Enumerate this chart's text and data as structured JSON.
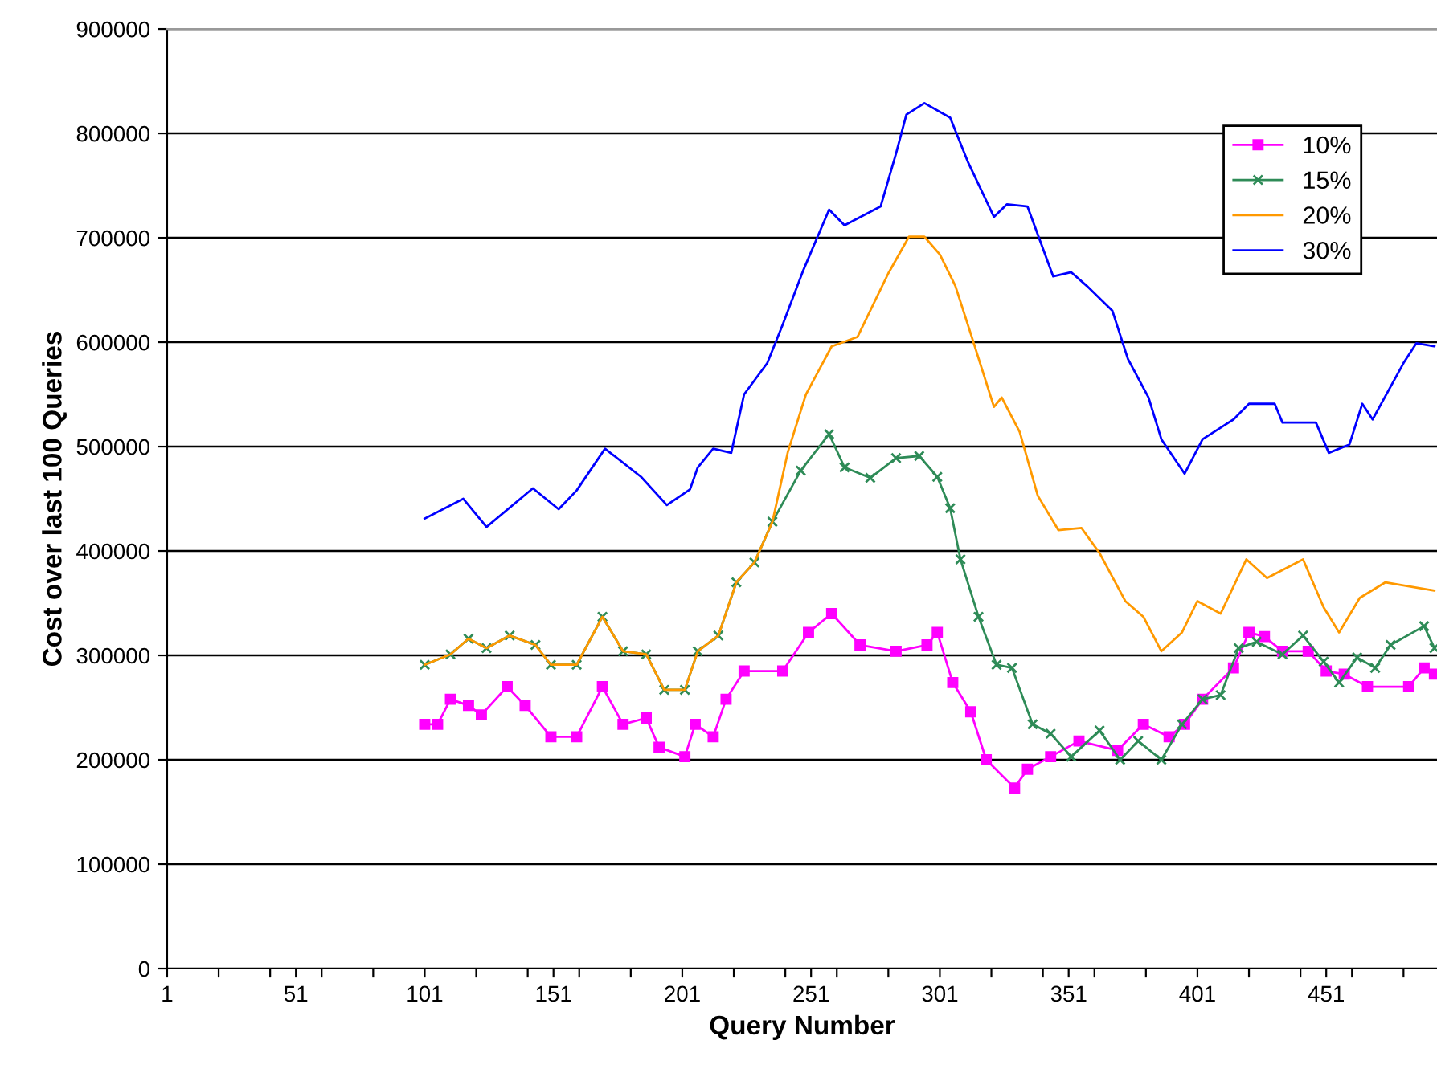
{
  "chart_data": {
    "type": "line",
    "xlabel": "Query Number",
    "ylabel": "Cost over last 100 Queries",
    "xlim": [
      1,
      494
    ],
    "xticks": [
      {
        "value": 1,
        "label": "1"
      },
      {
        "value": 21,
        "label": null
      },
      {
        "value": 41,
        "label": null
      },
      {
        "value": 51,
        "label": "51"
      },
      {
        "value": 61,
        "label": null
      },
      {
        "value": 81,
        "label": null
      },
      {
        "value": 101,
        "label": "101"
      },
      {
        "value": 121,
        "label": null
      },
      {
        "value": 141,
        "label": null
      },
      {
        "value": 151,
        "label": "151"
      },
      {
        "value": 161,
        "label": null
      },
      {
        "value": 181,
        "label": null
      },
      {
        "value": 201,
        "label": "201"
      },
      {
        "value": 221,
        "label": null
      },
      {
        "value": 241,
        "label": null
      },
      {
        "value": 251,
        "label": "251"
      },
      {
        "value": 261,
        "label": null
      },
      {
        "value": 281,
        "label": null
      },
      {
        "value": 301,
        "label": "301"
      },
      {
        "value": 321,
        "label": null
      },
      {
        "value": 341,
        "label": null
      },
      {
        "value": 351,
        "label": "351"
      },
      {
        "value": 361,
        "label": null
      },
      {
        "value": 381,
        "label": null
      },
      {
        "value": 401,
        "label": "401"
      },
      {
        "value": 421,
        "label": null
      },
      {
        "value": 441,
        "label": null
      },
      {
        "value": 451,
        "label": "451"
      },
      {
        "value": 461,
        "label": null
      },
      {
        "value": 481,
        "label": null
      }
    ],
    "ylim": [
      0,
      900000
    ],
    "yticks": [
      0,
      100000,
      200000,
      300000,
      400000,
      500000,
      600000,
      700000,
      800000,
      900000
    ],
    "grid": "y",
    "legend": "top right",
    "line_style": "solid",
    "series": [
      {
        "name": "10%",
        "color": "#ff00ff",
        "marker": "square",
        "x": [
          101,
          106,
          111,
          118,
          123,
          133,
          140,
          150,
          160,
          170,
          178,
          187,
          192,
          202,
          206,
          213,
          218,
          225,
          240,
          250,
          259,
          270,
          284,
          296,
          300,
          306,
          313,
          319,
          330,
          335,
          344,
          355,
          370,
          380,
          390,
          396,
          403,
          415,
          421,
          427,
          434,
          444,
          451,
          458,
          467,
          483,
          489,
          493
        ],
        "values": [
          234000,
          234000,
          258000,
          252000,
          243000,
          270000,
          252000,
          222000,
          222000,
          270000,
          234000,
          240000,
          212000,
          203000,
          234000,
          222000,
          258000,
          285000,
          285000,
          322000,
          340000,
          310000,
          304000,
          310000,
          322000,
          274000,
          246000,
          200000,
          173000,
          191000,
          203000,
          218000,
          209000,
          234000,
          222000,
          234000,
          258000,
          288000,
          322000,
          318000,
          304000,
          304000,
          285000,
          282000,
          270000,
          270000,
          288000,
          282000
        ]
      },
      {
        "name": "15%",
        "color": "#2e8b57",
        "marker": "cross",
        "x": [
          101,
          111,
          118,
          125,
          134,
          144,
          150,
          160,
          170,
          178,
          187,
          194,
          202,
          207,
          215,
          222,
          229,
          236,
          247,
          258,
          264,
          274,
          284,
          293,
          300,
          305,
          309,
          316,
          323,
          329,
          337,
          344,
          352,
          363,
          371,
          378,
          387,
          395,
          403,
          410,
          417,
          424,
          434,
          442,
          450,
          456,
          463,
          470,
          476,
          489,
          493
        ],
        "values": [
          291000,
          301000,
          316000,
          307000,
          319000,
          310000,
          291000,
          291000,
          337000,
          304000,
          301000,
          267000,
          267000,
          304000,
          319000,
          370000,
          389000,
          428000,
          477000,
          512000,
          480000,
          470000,
          489000,
          491000,
          471000,
          441000,
          392000,
          337000,
          291000,
          288000,
          234000,
          225000,
          203000,
          228000,
          200000,
          218000,
          200000,
          234000,
          258000,
          262000,
          307000,
          313000,
          301000,
          319000,
          294000,
          274000,
          298000,
          288000,
          310000,
          328000,
          307000
        ]
      },
      {
        "name": "20%",
        "color": "#ff9900",
        "marker": "none",
        "x": [
          101,
          111,
          118,
          125,
          134,
          144,
          150,
          160,
          170,
          178,
          187,
          194,
          202,
          207,
          215,
          222,
          229,
          236,
          242,
          249,
          259,
          269,
          281,
          289,
          295,
          301,
          307,
          313,
          322,
          325,
          332,
          339,
          347,
          356,
          363,
          373,
          380,
          387,
          395,
          401,
          410,
          420,
          428,
          442,
          450,
          456,
          464,
          474,
          493
        ],
        "values": [
          291000,
          301000,
          316000,
          307000,
          319000,
          310000,
          291000,
          291000,
          337000,
          304000,
          301000,
          267000,
          267000,
          304000,
          319000,
          370000,
          389000,
          428000,
          495000,
          550000,
          596000,
          605000,
          666000,
          701000,
          701000,
          684000,
          654000,
          608000,
          538000,
          547000,
          514000,
          453000,
          420000,
          422000,
          398000,
          352000,
          337000,
          304000,
          322000,
          352000,
          340000,
          392000,
          374000,
          392000,
          346000,
          322000,
          355000,
          370000,
          362000
        ]
      },
      {
        "name": "30%",
        "color": "#0000ff",
        "marker": "none",
        "x": [
          101,
          116,
          125,
          143,
          153,
          160,
          171,
          185,
          195,
          204,
          207,
          213,
          220,
          225,
          234,
          240,
          248,
          258,
          264,
          278,
          284,
          288,
          295,
          305,
          312,
          322,
          327,
          335,
          345,
          352,
          358,
          368,
          374,
          382,
          387,
          396,
          403,
          415,
          421,
          431,
          434,
          447,
          452,
          460,
          465,
          469,
          481,
          486,
          493
        ],
        "values": [
          431000,
          450000,
          423000,
          460000,
          440000,
          458000,
          498000,
          471000,
          444000,
          459000,
          480000,
          498000,
          494000,
          550000,
          580000,
          617000,
          669000,
          727000,
          712000,
          730000,
          781000,
          818000,
          829000,
          815000,
          772000,
          720000,
          732000,
          730000,
          663000,
          667000,
          654000,
          630000,
          584000,
          547000,
          507000,
          474000,
          507000,
          526000,
          541000,
          541000,
          523000,
          523000,
          494000,
          502000,
          541000,
          526000,
          580000,
          599000,
          596000
        ]
      }
    ]
  }
}
